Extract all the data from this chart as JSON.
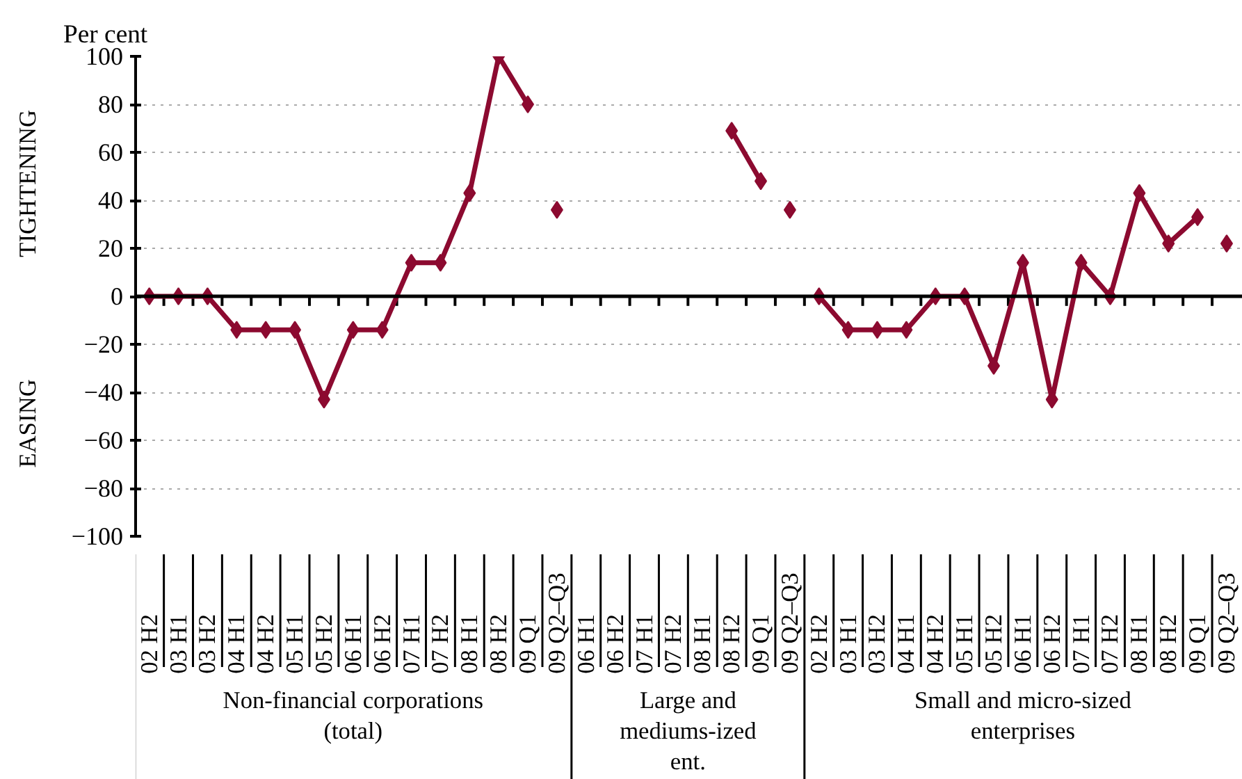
{
  "chart_data": {
    "type": "line",
    "ylabel": "Per cent",
    "categories": [
      "02 H2",
      "03 H1",
      "03 H2",
      "04 H1",
      "04 H2",
      "05 H1",
      "05 H2",
      "06 H1",
      "06 H2",
      "07 H1",
      "07 H2",
      "08 H1",
      "08 H2",
      "09 Q1",
      "09 Q2–Q3",
      "06 H1",
      "06 H2",
      "07 H1",
      "07 H2",
      "08 H1",
      "08 H2",
      "09 Q1",
      "09 Q2–Q3",
      "02 H2",
      "03 H1",
      "03 H2",
      "04 H1",
      "04 H2",
      "05 H1",
      "05 H2",
      "06 H1",
      "06 H2",
      "07 H1",
      "07 H2",
      "08 H1",
      "08 H2",
      "09 Q1",
      "09 Q2–Q3"
    ],
    "series": [
      {
        "color": "#8c0a30",
        "values": [
          0,
          0,
          0,
          -14,
          -14,
          -14,
          -43,
          -14,
          -14,
          14,
          14,
          43,
          100,
          80,
          null,
          null,
          null,
          null,
          null,
          null,
          69,
          48,
          null,
          0,
          -14,
          -14,
          -14,
          0,
          0,
          -29,
          14,
          -43,
          14,
          0,
          43,
          22,
          33,
          null
        ]
      },
      {
        "type": "scatter",
        "color": "#8c0a30",
        "values": [
          null,
          null,
          null,
          null,
          null,
          null,
          null,
          null,
          null,
          null,
          null,
          null,
          null,
          null,
          36,
          null,
          null,
          null,
          null,
          null,
          null,
          null,
          36,
          null,
          null,
          null,
          null,
          null,
          null,
          null,
          null,
          null,
          null,
          null,
          null,
          null,
          null,
          22
        ]
      }
    ],
    "ylim": [
      -100,
      100
    ],
    "yticks": [
      {
        "value": -100,
        "label": "−100"
      },
      {
        "value": -80,
        "label": "−80"
      },
      {
        "value": -60,
        "label": "−60"
      },
      {
        "value": -40,
        "label": "−40"
      },
      {
        "value": -20,
        "label": "−20"
      },
      0,
      20,
      40,
      60,
      80,
      100
    ],
    "grid": "y",
    "marker": "diamond",
    "line_style": "solid",
    "annotations": [
      "Non-financial corporations\n(total)",
      "Large and\nmediums-ized\nent.",
      "Small and micro-sized\nenterprises",
      "TIGHTENING",
      "EASING"
    ]
  }
}
